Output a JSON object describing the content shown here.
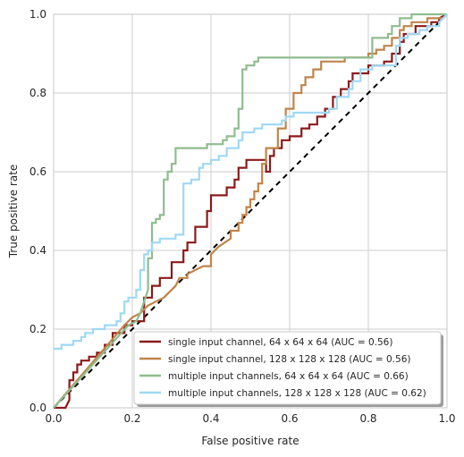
{
  "chart_data": {
    "type": "line",
    "xlabel": "False positive rate",
    "ylabel": "True positive rate",
    "xlim": [
      0.0,
      1.0
    ],
    "ylim": [
      0.0,
      1.0
    ],
    "grid": true,
    "legend_position": "lower-right",
    "x_ticks": [
      "0.0",
      "0.2",
      "0.4",
      "0.6",
      "0.8",
      "1.0"
    ],
    "y_ticks": [
      "0.0",
      "0.2",
      "0.4",
      "0.6",
      "0.8",
      "1.0"
    ],
    "series": [
      {
        "name": "single input channel, 64 x 64 x 64 (AUC = 0.56)",
        "color": "#8b1a1a",
        "points": [
          [
            0.0,
            0.0
          ],
          [
            0.03,
            0.0
          ],
          [
            0.04,
            0.02
          ],
          [
            0.04,
            0.07
          ],
          [
            0.05,
            0.07
          ],
          [
            0.05,
            0.09
          ],
          [
            0.06,
            0.09
          ],
          [
            0.06,
            0.11
          ],
          [
            0.07,
            0.11
          ],
          [
            0.07,
            0.12
          ],
          [
            0.09,
            0.12
          ],
          [
            0.09,
            0.13
          ],
          [
            0.11,
            0.13
          ],
          [
            0.11,
            0.14
          ],
          [
            0.13,
            0.14
          ],
          [
            0.13,
            0.16
          ],
          [
            0.15,
            0.16
          ],
          [
            0.15,
            0.19
          ],
          [
            0.18,
            0.19
          ],
          [
            0.18,
            0.21
          ],
          [
            0.2,
            0.21
          ],
          [
            0.2,
            0.22
          ],
          [
            0.23,
            0.22
          ],
          [
            0.23,
            0.28
          ],
          [
            0.25,
            0.28
          ],
          [
            0.25,
            0.31
          ],
          [
            0.27,
            0.31
          ],
          [
            0.27,
            0.33
          ],
          [
            0.3,
            0.33
          ],
          [
            0.3,
            0.37
          ],
          [
            0.33,
            0.37
          ],
          [
            0.33,
            0.4
          ],
          [
            0.34,
            0.4
          ],
          [
            0.34,
            0.42
          ],
          [
            0.36,
            0.42
          ],
          [
            0.36,
            0.46
          ],
          [
            0.39,
            0.46
          ],
          [
            0.39,
            0.5
          ],
          [
            0.4,
            0.5
          ],
          [
            0.4,
            0.54
          ],
          [
            0.44,
            0.54
          ],
          [
            0.44,
            0.56
          ],
          [
            0.46,
            0.56
          ],
          [
            0.46,
            0.58
          ],
          [
            0.47,
            0.58
          ],
          [
            0.47,
            0.61
          ],
          [
            0.49,
            0.61
          ],
          [
            0.49,
            0.63
          ],
          [
            0.54,
            0.63
          ],
          [
            0.54,
            0.6
          ],
          [
            0.55,
            0.6
          ],
          [
            0.55,
            0.64
          ],
          [
            0.56,
            0.64
          ],
          [
            0.56,
            0.66
          ],
          [
            0.58,
            0.66
          ],
          [
            0.58,
            0.68
          ],
          [
            0.6,
            0.68
          ],
          [
            0.6,
            0.69
          ],
          [
            0.63,
            0.69
          ],
          [
            0.63,
            0.71
          ],
          [
            0.65,
            0.71
          ],
          [
            0.65,
            0.72
          ],
          [
            0.67,
            0.72
          ],
          [
            0.67,
            0.74
          ],
          [
            0.69,
            0.74
          ],
          [
            0.69,
            0.76
          ],
          [
            0.71,
            0.76
          ],
          [
            0.71,
            0.79
          ],
          [
            0.73,
            0.79
          ],
          [
            0.73,
            0.81
          ],
          [
            0.75,
            0.81
          ],
          [
            0.75,
            0.83
          ],
          [
            0.76,
            0.83
          ],
          [
            0.76,
            0.85
          ],
          [
            0.8,
            0.85
          ],
          [
            0.8,
            0.87
          ],
          [
            0.84,
            0.87
          ],
          [
            0.84,
            0.88
          ],
          [
            0.86,
            0.88
          ],
          [
            0.86,
            0.9
          ],
          [
            0.88,
            0.9
          ],
          [
            0.88,
            0.93
          ],
          [
            0.89,
            0.93
          ],
          [
            0.89,
            0.95
          ],
          [
            0.92,
            0.95
          ],
          [
            0.92,
            0.97
          ],
          [
            0.96,
            0.97
          ],
          [
            0.96,
            0.98
          ],
          [
            0.98,
            0.98
          ],
          [
            0.98,
            0.99
          ],
          [
            1.0,
            1.0
          ]
        ]
      },
      {
        "name": "single input channel, 128 x 128 x 128 (AUC = 0.56)",
        "color": "#c0844a",
        "points": [
          [
            0.0,
            0.0
          ],
          [
            0.18,
            0.21
          ],
          [
            0.2,
            0.23
          ],
          [
            0.22,
            0.24
          ],
          [
            0.24,
            0.26
          ],
          [
            0.26,
            0.27
          ],
          [
            0.28,
            0.28
          ],
          [
            0.3,
            0.3
          ],
          [
            0.31,
            0.31
          ],
          [
            0.32,
            0.33
          ],
          [
            0.34,
            0.33
          ],
          [
            0.34,
            0.34
          ],
          [
            0.36,
            0.35
          ],
          [
            0.38,
            0.36
          ],
          [
            0.4,
            0.36
          ],
          [
            0.4,
            0.39
          ],
          [
            0.42,
            0.41
          ],
          [
            0.45,
            0.43
          ],
          [
            0.45,
            0.45
          ],
          [
            0.47,
            0.45
          ],
          [
            0.47,
            0.47
          ],
          [
            0.48,
            0.47
          ],
          [
            0.48,
            0.49
          ],
          [
            0.49,
            0.49
          ],
          [
            0.49,
            0.51
          ],
          [
            0.5,
            0.51
          ],
          [
            0.5,
            0.53
          ],
          [
            0.51,
            0.53
          ],
          [
            0.51,
            0.55
          ],
          [
            0.52,
            0.55
          ],
          [
            0.52,
            0.57
          ],
          [
            0.53,
            0.57
          ],
          [
            0.53,
            0.62
          ],
          [
            0.54,
            0.62
          ],
          [
            0.54,
            0.66
          ],
          [
            0.57,
            0.66
          ],
          [
            0.57,
            0.71
          ],
          [
            0.59,
            0.71
          ],
          [
            0.59,
            0.76
          ],
          [
            0.61,
            0.76
          ],
          [
            0.61,
            0.8
          ],
          [
            0.63,
            0.8
          ],
          [
            0.63,
            0.82
          ],
          [
            0.64,
            0.82
          ],
          [
            0.64,
            0.84
          ],
          [
            0.66,
            0.84
          ],
          [
            0.66,
            0.86
          ],
          [
            0.68,
            0.86
          ],
          [
            0.68,
            0.88
          ],
          [
            0.74,
            0.88
          ],
          [
            0.74,
            0.89
          ],
          [
            0.8,
            0.89
          ],
          [
            0.8,
            0.9
          ],
          [
            0.82,
            0.9
          ],
          [
            0.82,
            0.91
          ],
          [
            0.84,
            0.91
          ],
          [
            0.84,
            0.92
          ],
          [
            0.86,
            0.92
          ],
          [
            0.86,
            0.94
          ],
          [
            0.88,
            0.94
          ],
          [
            0.88,
            0.96
          ],
          [
            0.89,
            0.96
          ],
          [
            0.89,
            0.97
          ],
          [
            0.91,
            0.97
          ],
          [
            0.91,
            0.98
          ],
          [
            0.95,
            0.98
          ],
          [
            0.95,
            0.99
          ],
          [
            0.99,
            0.99
          ],
          [
            1.0,
            1.0
          ]
        ]
      },
      {
        "name": "multiple input channels, 64 x 64 x 64 (AUC = 0.66)",
        "color": "#8fbc8f",
        "points": [
          [
            0.0,
            0.0
          ],
          [
            0.19,
            0.21
          ],
          [
            0.21,
            0.22
          ],
          [
            0.22,
            0.24
          ],
          [
            0.23,
            0.27
          ],
          [
            0.24,
            0.3
          ],
          [
            0.24,
            0.38
          ],
          [
            0.25,
            0.38
          ],
          [
            0.25,
            0.47
          ],
          [
            0.26,
            0.47
          ],
          [
            0.26,
            0.48
          ],
          [
            0.27,
            0.48
          ],
          [
            0.27,
            0.49
          ],
          [
            0.28,
            0.49
          ],
          [
            0.28,
            0.58
          ],
          [
            0.29,
            0.58
          ],
          [
            0.29,
            0.6
          ],
          [
            0.3,
            0.6
          ],
          [
            0.3,
            0.62
          ],
          [
            0.31,
            0.62
          ],
          [
            0.31,
            0.66
          ],
          [
            0.39,
            0.66
          ],
          [
            0.39,
            0.67
          ],
          [
            0.43,
            0.67
          ],
          [
            0.43,
            0.68
          ],
          [
            0.44,
            0.68
          ],
          [
            0.44,
            0.69
          ],
          [
            0.46,
            0.69
          ],
          [
            0.46,
            0.71
          ],
          [
            0.47,
            0.71
          ],
          [
            0.47,
            0.76
          ],
          [
            0.48,
            0.76
          ],
          [
            0.48,
            0.86
          ],
          [
            0.49,
            0.86
          ],
          [
            0.49,
            0.87
          ],
          [
            0.51,
            0.87
          ],
          [
            0.51,
            0.88
          ],
          [
            0.52,
            0.88
          ],
          [
            0.52,
            0.89
          ],
          [
            0.81,
            0.89
          ],
          [
            0.81,
            0.94
          ],
          [
            0.85,
            0.94
          ],
          [
            0.85,
            0.95
          ],
          [
            0.86,
            0.95
          ],
          [
            0.86,
            0.97
          ],
          [
            0.88,
            0.97
          ],
          [
            0.88,
            0.99
          ],
          [
            0.91,
            0.99
          ],
          [
            0.91,
            1.0
          ],
          [
            1.0,
            1.0
          ]
        ]
      },
      {
        "name": "multiple input channels, 128 x 128 x 128 (AUC = 0.62)",
        "color": "#9fd8f5",
        "points": [
          [
            0.0,
            0.15
          ],
          [
            0.02,
            0.15
          ],
          [
            0.02,
            0.16
          ],
          [
            0.05,
            0.16
          ],
          [
            0.05,
            0.17
          ],
          [
            0.07,
            0.17
          ],
          [
            0.07,
            0.18
          ],
          [
            0.08,
            0.18
          ],
          [
            0.08,
            0.19
          ],
          [
            0.1,
            0.19
          ],
          [
            0.1,
            0.2
          ],
          [
            0.13,
            0.2
          ],
          [
            0.13,
            0.21
          ],
          [
            0.16,
            0.21
          ],
          [
            0.16,
            0.22
          ],
          [
            0.17,
            0.22
          ],
          [
            0.17,
            0.24
          ],
          [
            0.18,
            0.24
          ],
          [
            0.18,
            0.27
          ],
          [
            0.19,
            0.27
          ],
          [
            0.19,
            0.28
          ],
          [
            0.21,
            0.28
          ],
          [
            0.21,
            0.3
          ],
          [
            0.22,
            0.3
          ],
          [
            0.22,
            0.35
          ],
          [
            0.23,
            0.35
          ],
          [
            0.23,
            0.39
          ],
          [
            0.24,
            0.39
          ],
          [
            0.24,
            0.4
          ],
          [
            0.25,
            0.4
          ],
          [
            0.25,
            0.42
          ],
          [
            0.27,
            0.42
          ],
          [
            0.27,
            0.43
          ],
          [
            0.31,
            0.43
          ],
          [
            0.31,
            0.44
          ],
          [
            0.33,
            0.44
          ],
          [
            0.33,
            0.57
          ],
          [
            0.35,
            0.57
          ],
          [
            0.35,
            0.58
          ],
          [
            0.37,
            0.58
          ],
          [
            0.37,
            0.61
          ],
          [
            0.38,
            0.61
          ],
          [
            0.38,
            0.62
          ],
          [
            0.4,
            0.62
          ],
          [
            0.4,
            0.63
          ],
          [
            0.42,
            0.63
          ],
          [
            0.42,
            0.64
          ],
          [
            0.44,
            0.64
          ],
          [
            0.44,
            0.66
          ],
          [
            0.47,
            0.66
          ],
          [
            0.47,
            0.68
          ],
          [
            0.48,
            0.68
          ],
          [
            0.48,
            0.7
          ],
          [
            0.51,
            0.7
          ],
          [
            0.51,
            0.71
          ],
          [
            0.53,
            0.71
          ],
          [
            0.53,
            0.72
          ],
          [
            0.58,
            0.72
          ],
          [
            0.58,
            0.73
          ],
          [
            0.59,
            0.73
          ],
          [
            0.59,
            0.74
          ],
          [
            0.61,
            0.74
          ],
          [
            0.61,
            0.75
          ],
          [
            0.7,
            0.75
          ],
          [
            0.7,
            0.76
          ],
          [
            0.72,
            0.76
          ],
          [
            0.72,
            0.79
          ],
          [
            0.75,
            0.79
          ],
          [
            0.75,
            0.81
          ],
          [
            0.76,
            0.81
          ],
          [
            0.76,
            0.83
          ],
          [
            0.78,
            0.83
          ],
          [
            0.78,
            0.86
          ],
          [
            0.81,
            0.86
          ],
          [
            0.81,
            0.87
          ],
          [
            0.87,
            0.87
          ],
          [
            0.87,
            0.92
          ],
          [
            0.88,
            0.92
          ],
          [
            0.88,
            0.94
          ],
          [
            0.9,
            0.94
          ],
          [
            0.9,
            0.95
          ],
          [
            0.93,
            0.95
          ],
          [
            0.93,
            0.96
          ],
          [
            0.95,
            0.96
          ],
          [
            0.95,
            0.97
          ],
          [
            0.98,
            0.97
          ],
          [
            0.98,
            0.98
          ],
          [
            1.0,
            1.0
          ]
        ]
      }
    ],
    "reference_line": {
      "points": [
        [
          0.0,
          0.0
        ],
        [
          1.0,
          1.0
        ]
      ],
      "style": "dashed",
      "color": "#000000"
    }
  }
}
